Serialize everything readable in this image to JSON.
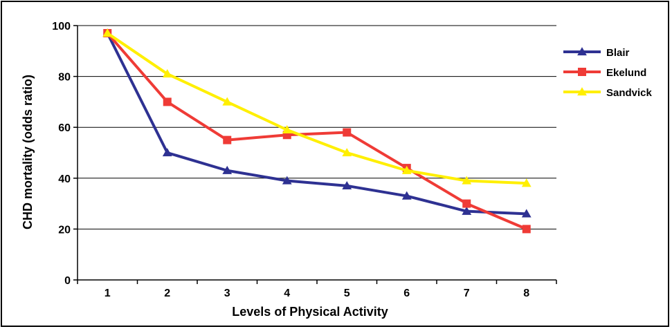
{
  "chart_data": {
    "type": "line",
    "title": "",
    "xlabel": "Levels of Physical Activity",
    "ylabel": "CHD mortality (odds ratio)",
    "categories": [
      "1",
      "2",
      "3",
      "4",
      "5",
      "6",
      "7",
      "8"
    ],
    "ylim": [
      0,
      100
    ],
    "yticks": [
      "0",
      "20",
      "40",
      "60",
      "80",
      "100"
    ],
    "grid": "horizontal",
    "legend_position": "right",
    "series": [
      {
        "name": "Blair",
        "color": "#2e3192",
        "marker": "triangle",
        "values": [
          97,
          50,
          43,
          39,
          37,
          33,
          27,
          26
        ]
      },
      {
        "name": "Ekelund",
        "color": "#ef3b36",
        "marker": "square",
        "values": [
          97,
          70,
          55,
          57,
          58,
          44,
          30,
          20
        ]
      },
      {
        "name": "Sandvick",
        "color": "#ffef00",
        "marker": "triangle",
        "values": [
          97,
          81,
          70,
          59,
          50,
          43,
          39,
          38
        ]
      }
    ]
  }
}
